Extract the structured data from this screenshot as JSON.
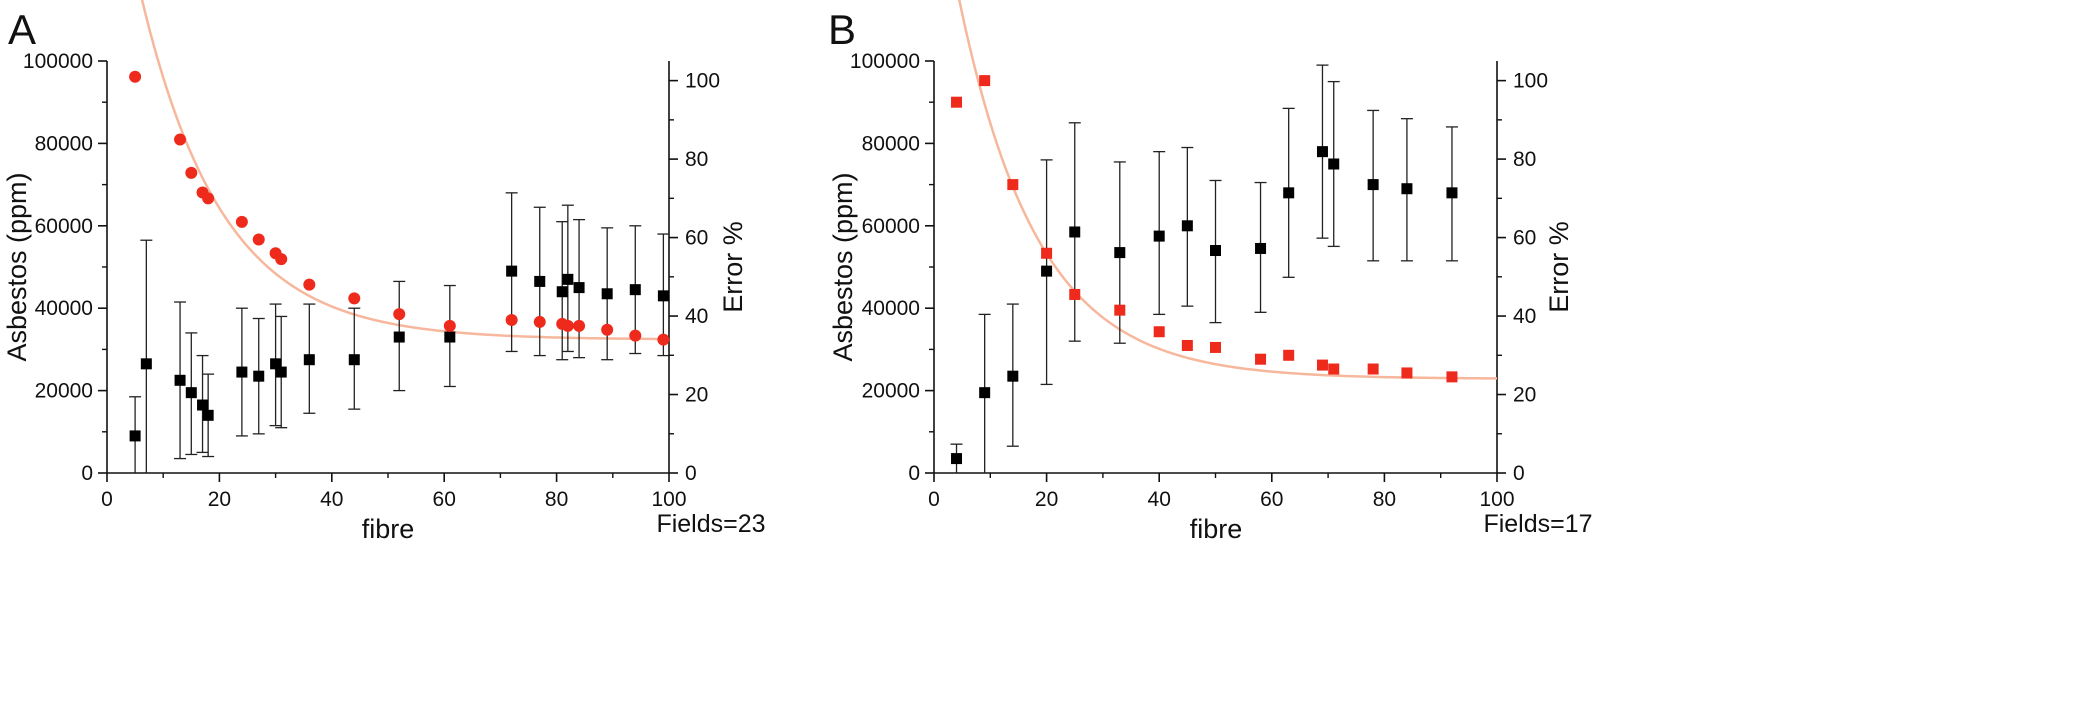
{
  "chart_data": [
    {
      "panel_label": "A",
      "type": "scatter",
      "xlabel": "fibre",
      "ylabel": "Asbestos (ppm)",
      "y2label": "Error %",
      "annotation": "Fields=23",
      "xlim": [
        0,
        100
      ],
      "ylim": [
        0,
        100000
      ],
      "y2lim": [
        0,
        105
      ],
      "x_ticks": [
        0,
        20,
        40,
        60,
        80,
        100
      ],
      "y_ticks": [
        0,
        20000,
        40000,
        60000,
        80000,
        100000
      ],
      "y2_ticks": [
        0,
        20,
        40,
        60,
        80,
        100
      ],
      "marker": "circle",
      "colors": {
        "asbestos": "#000000",
        "error": "#ee2a1c",
        "fit": "#f7b79c",
        "errorbar": "#222222"
      },
      "asbestos_series": [
        {
          "x": 5,
          "y": 9000,
          "low": 0,
          "high": 18500
        },
        {
          "x": 7,
          "y": 26500,
          "low": 0,
          "high": 56500
        },
        {
          "x": 13,
          "y": 22500,
          "low": 3500,
          "high": 41500
        },
        {
          "x": 15,
          "y": 19500,
          "low": 4500,
          "high": 34000
        },
        {
          "x": 17,
          "y": 16500,
          "low": 5000,
          "high": 28500
        },
        {
          "x": 18,
          "y": 14000,
          "low": 4000,
          "high": 24000
        },
        {
          "x": 24,
          "y": 24500,
          "low": 9000,
          "high": 40000
        },
        {
          "x": 27,
          "y": 23500,
          "low": 9500,
          "high": 37500
        },
        {
          "x": 30,
          "y": 26500,
          "low": 11500,
          "high": 41000
        },
        {
          "x": 31,
          "y": 24500,
          "low": 11000,
          "high": 38000
        },
        {
          "x": 36,
          "y": 27500,
          "low": 14500,
          "high": 41000
        },
        {
          "x": 44,
          "y": 27500,
          "low": 15500,
          "high": 40000
        },
        {
          "x": 52,
          "y": 33000,
          "low": 20000,
          "high": 46500
        },
        {
          "x": 61,
          "y": 33000,
          "low": 21000,
          "high": 45500
        },
        {
          "x": 72,
          "y": 49000,
          "low": 29500,
          "high": 68000
        },
        {
          "x": 77,
          "y": 46500,
          "low": 28500,
          "high": 64500
        },
        {
          "x": 81,
          "y": 44000,
          "low": 27500,
          "high": 61000
        },
        {
          "x": 82,
          "y": 47000,
          "low": 29500,
          "high": 65000
        },
        {
          "x": 84,
          "y": 45000,
          "low": 28000,
          "high": 61500
        },
        {
          "x": 89,
          "y": 43500,
          "low": 27500,
          "high": 59500
        },
        {
          "x": 94,
          "y": 44500,
          "low": 29000,
          "high": 60000
        },
        {
          "x": 99,
          "y": 43000,
          "low": 28500,
          "high": 58000
        }
      ],
      "error_series": [
        {
          "x": 5,
          "y": 101
        },
        {
          "x": 13,
          "y": 85
        },
        {
          "x": 15,
          "y": 76.5
        },
        {
          "x": 17,
          "y": 71.5
        },
        {
          "x": 18,
          "y": 70
        },
        {
          "x": 24,
          "y": 64
        },
        {
          "x": 27,
          "y": 59.5
        },
        {
          "x": 30,
          "y": 56
        },
        {
          "x": 31,
          "y": 54.5
        },
        {
          "x": 36,
          "y": 48
        },
        {
          "x": 44,
          "y": 44.5
        },
        {
          "x": 52,
          "y": 40.5
        },
        {
          "x": 61,
          "y": 37.5
        },
        {
          "x": 72,
          "y": 39
        },
        {
          "x": 77,
          "y": 38.5
        },
        {
          "x": 81,
          "y": 38
        },
        {
          "x": 82,
          "y": 37.5
        },
        {
          "x": 84,
          "y": 37.5
        },
        {
          "x": 89,
          "y": 36.5
        },
        {
          "x": 94,
          "y": 35
        },
        {
          "x": 99,
          "y": 34
        }
      ],
      "fit_curve_error": {
        "xmin": 6,
        "xmax": 100,
        "model": "exp",
        "a": 88,
        "tau": 14.5,
        "c": 34
      }
    },
    {
      "panel_label": "B",
      "type": "scatter",
      "xlabel": "fibre",
      "ylabel": "Asbestos (ppm)",
      "y2label": "Error %",
      "annotation": "Fields=17",
      "xlim": [
        0,
        100
      ],
      "ylim": [
        0,
        100000
      ],
      "y2lim": [
        0,
        105
      ],
      "x_ticks": [
        0,
        20,
        40,
        60,
        80,
        100
      ],
      "y_ticks": [
        0,
        20000,
        40000,
        60000,
        80000,
        100000
      ],
      "y2_ticks": [
        0,
        20,
        40,
        60,
        80,
        100
      ],
      "marker": "square",
      "colors": {
        "asbestos": "#000000",
        "error": "#ee2a1c",
        "fit": "#f7b79c",
        "errorbar": "#222222"
      },
      "asbestos_series": [
        {
          "x": 4,
          "y": 3500,
          "low": 0,
          "high": 7000
        },
        {
          "x": 9,
          "y": 19500,
          "low": 0,
          "high": 38500
        },
        {
          "x": 14,
          "y": 23500,
          "low": 6500,
          "high": 41000
        },
        {
          "x": 20,
          "y": 49000,
          "low": 21500,
          "high": 76000
        },
        {
          "x": 25,
          "y": 58500,
          "low": 32000,
          "high": 85000
        },
        {
          "x": 33,
          "y": 53500,
          "low": 31500,
          "high": 75500
        },
        {
          "x": 40,
          "y": 57500,
          "low": 38500,
          "high": 78000
        },
        {
          "x": 45,
          "y": 60000,
          "low": 40500,
          "high": 79000
        },
        {
          "x": 50,
          "y": 54000,
          "low": 36500,
          "high": 71000
        },
        {
          "x": 58,
          "y": 54500,
          "low": 39000,
          "high": 70500
        },
        {
          "x": 63,
          "y": 68000,
          "low": 47500,
          "high": 88500
        },
        {
          "x": 69,
          "y": 78000,
          "low": 57000,
          "high": 99000
        },
        {
          "x": 71,
          "y": 75000,
          "low": 55000,
          "high": 95000
        },
        {
          "x": 78,
          "y": 70000,
          "low": 51500,
          "high": 88000
        },
        {
          "x": 84,
          "y": 69000,
          "low": 51500,
          "high": 86000
        },
        {
          "x": 92,
          "y": 68000,
          "low": 51500,
          "high": 84000
        }
      ],
      "error_series": [
        {
          "x": 4,
          "y": 94.5
        },
        {
          "x": 9,
          "y": 100
        },
        {
          "x": 14,
          "y": 73.5
        },
        {
          "x": 20,
          "y": 56
        },
        {
          "x": 25,
          "y": 45.5
        },
        {
          "x": 33,
          "y": 41.5
        },
        {
          "x": 40,
          "y": 36
        },
        {
          "x": 45,
          "y": 32.5
        },
        {
          "x": 50,
          "y": 32
        },
        {
          "x": 58,
          "y": 29
        },
        {
          "x": 63,
          "y": 30
        },
        {
          "x": 69,
          "y": 27.5
        },
        {
          "x": 71,
          "y": 26.5
        },
        {
          "x": 78,
          "y": 26.5
        },
        {
          "x": 84,
          "y": 25.5
        },
        {
          "x": 92,
          "y": 24.5
        }
      ],
      "fit_curve_error": {
        "xmin": 4,
        "xmax": 100,
        "model": "exp",
        "a": 100,
        "tau": 14,
        "c": 24
      }
    }
  ]
}
